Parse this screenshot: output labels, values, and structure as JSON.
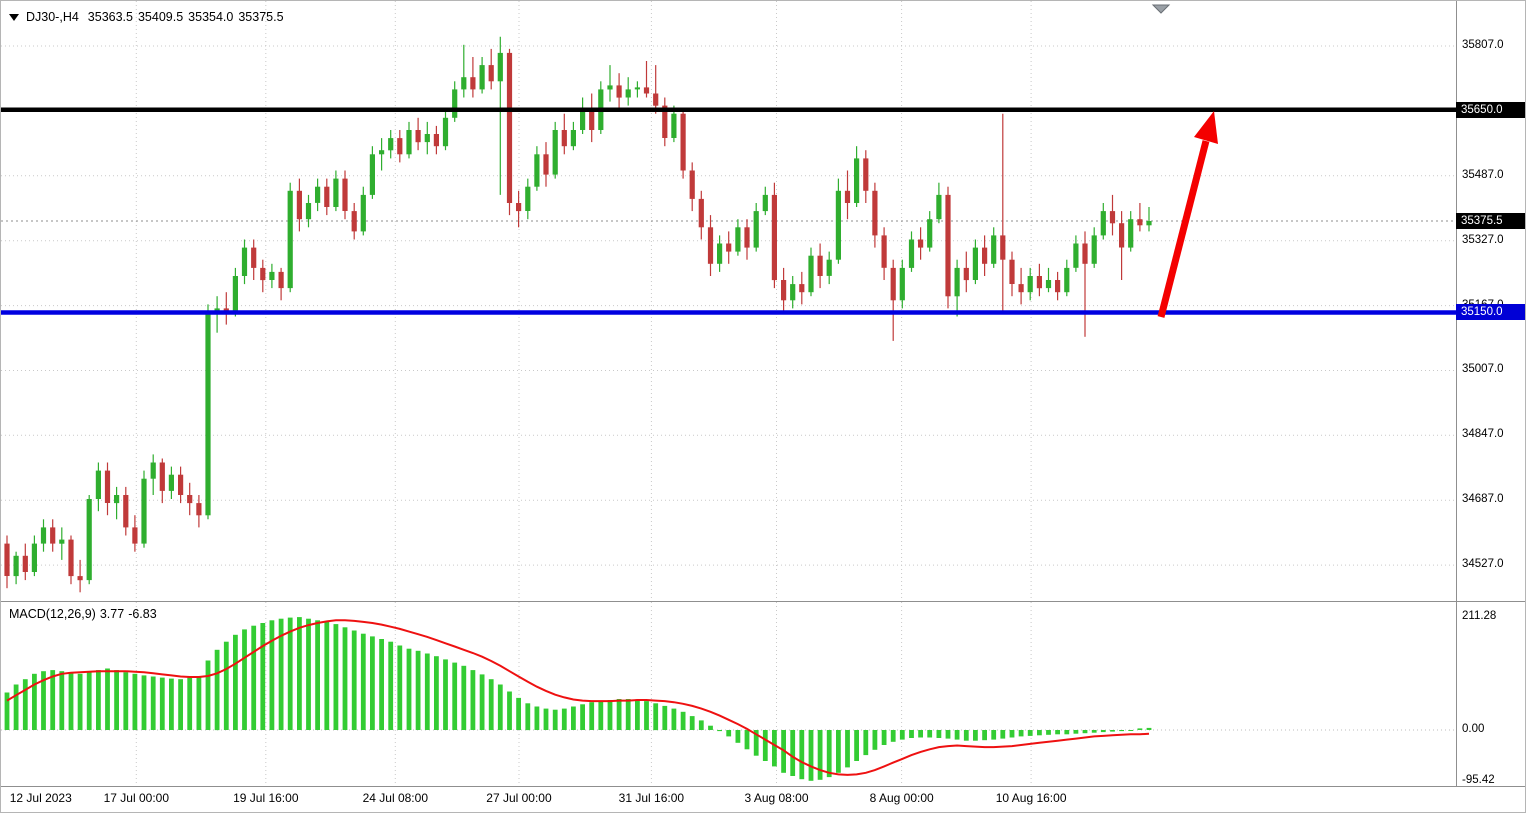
{
  "header": {
    "symbol": "DJ30-,H4",
    "open": "35363.5",
    "high": "35409.5",
    "low": "35354.0",
    "close": "35375.5"
  },
  "chart_data": {
    "type": "candlestick",
    "symbol": "DJ30-",
    "timeframe": "H4",
    "colors": {
      "bull": "#2fae2f",
      "bear": "#c03a3a",
      "grid": "#c9c9c9",
      "resistance": "#000000",
      "support": "#0000e0",
      "arrow": "#f40000"
    },
    "price_axis": {
      "min": 34441,
      "max": 35918,
      "gridlines": [
        35807,
        35647,
        35487,
        35327,
        35167,
        35007,
        34847,
        34687,
        34527
      ],
      "labels": [
        "35807.0",
        "",
        "35487.0",
        "35327.0",
        "35167.0",
        "35007.0",
        "34847.0",
        "34687.0",
        "34527.0"
      ],
      "tags": [
        {
          "label": "35650.0",
          "value": 35650,
          "bg": "#000000"
        },
        {
          "label": "35375.5",
          "value": 35375.5,
          "bg": "#000000"
        },
        {
          "label": "35150.0",
          "value": 35150,
          "bg": "#0000d6"
        }
      ]
    },
    "hlines": [
      {
        "name": "resistance-line",
        "value": 35650,
        "color": "#000000",
        "width": 4.5
      },
      {
        "name": "support-line",
        "value": 35150,
        "color": "#0000e0",
        "width": 4.5
      }
    ],
    "current_price": {
      "value": 35375.5
    },
    "time_axis": {
      "labels": [
        "12 Jul 2023",
        "17 Jul 00:00",
        "19 Jul 16:00",
        "24 Jul 08:00",
        "27 Jul 00:00",
        "31 Jul 16:00",
        "3 Aug 08:00",
        "8 Aug 00:00",
        "10 Aug 16:00"
      ],
      "fractions": [
        0.006,
        0.093,
        0.182,
        0.271,
        0.356,
        0.447,
        0.533,
        0.619,
        0.708
      ]
    },
    "candles": [
      [
        34580,
        34600,
        34470,
        34500
      ],
      [
        34500,
        34560,
        34480,
        34550
      ],
      [
        34550,
        34580,
        34490,
        34510
      ],
      [
        34510,
        34600,
        34500,
        34580
      ],
      [
        34580,
        34640,
        34560,
        34620
      ],
      [
        34620,
        34640,
        34560,
        34580
      ],
      [
        34580,
        34620,
        34540,
        34590
      ],
      [
        34590,
        34600,
        34480,
        34500
      ],
      [
        34500,
        34540,
        34460,
        34490
      ],
      [
        34490,
        34700,
        34480,
        34690
      ],
      [
        34690,
        34780,
        34660,
        34760
      ],
      [
        34760,
        34780,
        34650,
        34680
      ],
      [
        34680,
        34720,
        34640,
        34700
      ],
      [
        34700,
        34720,
        34600,
        34620
      ],
      [
        34620,
        34650,
        34560,
        34580
      ],
      [
        34580,
        34760,
        34570,
        34740
      ],
      [
        34740,
        34800,
        34700,
        34780
      ],
      [
        34780,
        34790,
        34680,
        34710
      ],
      [
        34710,
        34770,
        34690,
        34750
      ],
      [
        34750,
        34770,
        34680,
        34700
      ],
      [
        34700,
        34730,
        34650,
        34680
      ],
      [
        34680,
        34700,
        34620,
        34650
      ],
      [
        34650,
        35170,
        34640,
        35150
      ],
      [
        35150,
        35190,
        35100,
        35160
      ],
      [
        35160,
        35200,
        35120,
        35150
      ],
      [
        35150,
        35260,
        35140,
        35240
      ],
      [
        35240,
        35330,
        35220,
        35310
      ],
      [
        35310,
        35330,
        35230,
        35260
      ],
      [
        35260,
        35280,
        35200,
        35230
      ],
      [
        35230,
        35270,
        35210,
        35250
      ],
      [
        35250,
        35260,
        35180,
        35210
      ],
      [
        35210,
        35470,
        35200,
        35450
      ],
      [
        35450,
        35480,
        35350,
        35380
      ],
      [
        35380,
        35440,
        35360,
        35420
      ],
      [
        35420,
        35480,
        35400,
        35460
      ],
      [
        35460,
        35480,
        35390,
        35410
      ],
      [
        35410,
        35500,
        35400,
        35480
      ],
      [
        35480,
        35500,
        35380,
        35400
      ],
      [
        35400,
        35420,
        35330,
        35350
      ],
      [
        35350,
        35460,
        35340,
        35440
      ],
      [
        35440,
        35560,
        35430,
        35540
      ],
      [
        35540,
        35580,
        35500,
        35550
      ],
      [
        35550,
        35600,
        35530,
        35580
      ],
      [
        35580,
        35600,
        35520,
        35540
      ],
      [
        35540,
        35620,
        35530,
        35600
      ],
      [
        35600,
        35630,
        35550,
        35570
      ],
      [
        35570,
        35620,
        35540,
        35590
      ],
      [
        35590,
        35610,
        35540,
        35560
      ],
      [
        35560,
        35650,
        35550,
        35630
      ],
      [
        35630,
        35720,
        35620,
        35700
      ],
      [
        35700,
        35810,
        35680,
        35730
      ],
      [
        35730,
        35780,
        35680,
        35700
      ],
      [
        35700,
        35780,
        35690,
        35760
      ],
      [
        35760,
        35800,
        35700,
        35720
      ],
      [
        35720,
        35830,
        35440,
        35790
      ],
      [
        35790,
        35800,
        35390,
        35420
      ],
      [
        35420,
        35450,
        35360,
        35400
      ],
      [
        35400,
        35480,
        35380,
        35460
      ],
      [
        35460,
        35560,
        35450,
        35540
      ],
      [
        35540,
        35570,
        35460,
        35490
      ],
      [
        35490,
        35620,
        35480,
        35600
      ],
      [
        35600,
        35640,
        35540,
        35560
      ],
      [
        35560,
        35620,
        35550,
        35600
      ],
      [
        35600,
        35680,
        35590,
        35650
      ],
      [
        35650,
        35690,
        35570,
        35600
      ],
      [
        35600,
        35720,
        35590,
        35700
      ],
      [
        35700,
        35760,
        35670,
        35710
      ],
      [
        35710,
        35740,
        35650,
        35680
      ],
      [
        35680,
        35730,
        35660,
        35700
      ],
      [
        35700,
        35720,
        35680,
        35705
      ],
      [
        35705,
        35770,
        35680,
        35690
      ],
      [
        35690,
        35760,
        35640,
        35660
      ],
      [
        35660,
        35680,
        35560,
        35580
      ],
      [
        35580,
        35660,
        35570,
        35640
      ],
      [
        35640,
        35650,
        35480,
        35500
      ],
      [
        35500,
        35520,
        35400,
        35430
      ],
      [
        35430,
        35450,
        35330,
        35360
      ],
      [
        35360,
        35390,
        35240,
        35270
      ],
      [
        35270,
        35340,
        35250,
        35320
      ],
      [
        35320,
        35350,
        35270,
        35300
      ],
      [
        35300,
        35380,
        35290,
        35360
      ],
      [
        35360,
        35380,
        35280,
        35310
      ],
      [
        35310,
        35420,
        35300,
        35400
      ],
      [
        35400,
        35460,
        35390,
        35440
      ],
      [
        35440,
        35470,
        35210,
        35230
      ],
      [
        35230,
        35260,
        35150,
        35180
      ],
      [
        35180,
        35240,
        35160,
        35220
      ],
      [
        35220,
        35250,
        35170,
        35200
      ],
      [
        35200,
        35310,
        35190,
        35290
      ],
      [
        35290,
        35320,
        35210,
        35240
      ],
      [
        35240,
        35300,
        35220,
        35280
      ],
      [
        35280,
        35480,
        35270,
        35450
      ],
      [
        35450,
        35500,
        35380,
        35420
      ],
      [
        35420,
        35560,
        35410,
        35530
      ],
      [
        35530,
        35550,
        35420,
        35450
      ],
      [
        35450,
        35470,
        35310,
        35340
      ],
      [
        35340,
        35360,
        35230,
        35260
      ],
      [
        35260,
        35280,
        35080,
        35180
      ],
      [
        35180,
        35280,
        35160,
        35260
      ],
      [
        35260,
        35350,
        35250,
        35330
      ],
      [
        35330,
        35360,
        35280,
        35310
      ],
      [
        35310,
        35400,
        35300,
        35380
      ],
      [
        35380,
        35470,
        35370,
        35440
      ],
      [
        35440,
        35460,
        35160,
        35190
      ],
      [
        35190,
        35280,
        35140,
        35260
      ],
      [
        35260,
        35300,
        35200,
        35230
      ],
      [
        35230,
        35330,
        35220,
        35310
      ],
      [
        35310,
        35340,
        35240,
        35270
      ],
      [
        35270,
        35360,
        35260,
        35340
      ],
      [
        35340,
        35640,
        35150,
        35280
      ],
      [
        35280,
        35300,
        35190,
        35220
      ],
      [
        35220,
        35260,
        35170,
        35200
      ],
      [
        35200,
        35260,
        35180,
        35240
      ],
      [
        35240,
        35270,
        35190,
        35210
      ],
      [
        35210,
        35260,
        35200,
        35230
      ],
      [
        35230,
        35250,
        35180,
        35200
      ],
      [
        35200,
        35280,
        35190,
        35260
      ],
      [
        35260,
        35340,
        35250,
        35320
      ],
      [
        35320,
        35350,
        35090,
        35270
      ],
      [
        35270,
        35360,
        35260,
        35340
      ],
      [
        35340,
        35420,
        35330,
        35400
      ],
      [
        35400,
        35440,
        35340,
        35370
      ],
      [
        35370,
        35400,
        35230,
        35310
      ],
      [
        35310,
        35400,
        35300,
        35380
      ],
      [
        35380,
        35420,
        35350,
        35365
      ],
      [
        35365,
        35410,
        35350,
        35375.5
      ]
    ],
    "macd": {
      "label": "MACD(12,26,9)",
      "value_main": "3.77",
      "value_signal": "-6.83",
      "histogram_color": "#33cc33",
      "signal_color": "#ee1111",
      "axis": [
        {
          "label": "211.28",
          "value": 211.28
        },
        {
          "label": "0.00",
          "value": 0
        },
        {
          "label": "-95.42",
          "value": -95.42
        }
      ],
      "histogram": [
        70,
        85,
        95,
        105,
        110,
        112,
        110,
        108,
        105,
        108,
        112,
        115,
        112,
        108,
        105,
        102,
        100,
        98,
        96,
        95,
        98,
        100,
        130,
        150,
        165,
        178,
        188,
        195,
        200,
        205,
        208,
        210,
        211,
        208,
        205,
        202,
        198,
        192,
        186,
        180,
        175,
        170,
        165,
        158,
        152,
        148,
        143,
        138,
        132,
        126,
        120,
        112,
        104,
        95,
        85,
        72,
        60,
        50,
        44,
        40,
        38,
        40,
        44,
        48,
        52,
        55,
        56,
        58,
        58,
        56,
        54,
        50,
        45,
        40,
        34,
        26,
        18,
        8,
        -2,
        -12,
        -24,
        -36,
        -48,
        -58,
        -68,
        -80,
        -86,
        -92,
        -95,
        -93,
        -88,
        -80,
        -70,
        -58,
        -47,
        -37,
        -28,
        -22,
        -18,
        -15,
        -14,
        -14,
        -15,
        -16,
        -18,
        -20,
        -20,
        -19,
        -18,
        -16,
        -14,
        -12,
        -11,
        -10,
        -9,
        -8,
        -8,
        -7,
        -6,
        -5,
        -4,
        -3,
        -2,
        0,
        3,
        4
      ],
      "signal": [
        55,
        65,
        75,
        85,
        93,
        100,
        105,
        107,
        108,
        109,
        110,
        110,
        110,
        110,
        109,
        108,
        106,
        104,
        102,
        100,
        99,
        99,
        101,
        106,
        114,
        124,
        135,
        146,
        157,
        167,
        176,
        184,
        191,
        196,
        200,
        203,
        205,
        205,
        204,
        202,
        200,
        197,
        193,
        189,
        184,
        179,
        174,
        168,
        162,
        156,
        150,
        144,
        137,
        129,
        120,
        110,
        100,
        90,
        81,
        73,
        66,
        61,
        57,
        55,
        54,
        54,
        54,
        55,
        55,
        56,
        56,
        55,
        54,
        52,
        49,
        45,
        40,
        34,
        27,
        19,
        11,
        2,
        -8,
        -18,
        -28,
        -38,
        -50,
        -60,
        -68,
        -75,
        -80,
        -83,
        -84,
        -83,
        -80,
        -75,
        -68,
        -61,
        -54,
        -47,
        -41,
        -36,
        -32,
        -30,
        -29,
        -30,
        -31,
        -32,
        -32,
        -31,
        -30,
        -28,
        -26,
        -24,
        -22,
        -20,
        -18,
        -16,
        -14,
        -12,
        -11,
        -10,
        -9,
        -8,
        -8,
        -7
      ]
    },
    "arrow": {
      "color": "#f40000",
      "width": 7,
      "shaft": [
        [
          1160,
          316
        ],
        [
          1205,
          140
        ]
      ],
      "head": [
        [
          1213,
          110
        ],
        [
          1217,
          143
        ],
        [
          1193,
          136
        ]
      ]
    }
  }
}
